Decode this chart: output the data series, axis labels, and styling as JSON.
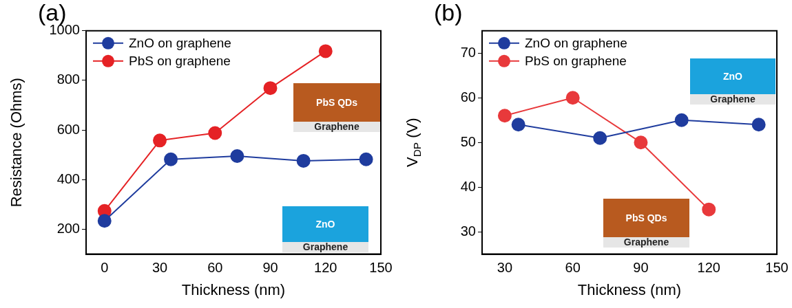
{
  "chart_data": [
    {
      "type": "line",
      "title": "(a)",
      "xlabel": "Thickness (nm)",
      "ylabel": "Resistance (Ohms)",
      "xlim": [
        -10,
        150
      ],
      "xticks": [
        0,
        30,
        60,
        90,
        120,
        150
      ],
      "ylim": [
        100,
        1000
      ],
      "yticks": [
        200,
        400,
        600,
        800,
        1000
      ],
      "grid": false,
      "legend": "top left",
      "marker": "circle",
      "series": [
        {
          "name": "ZnO on graphene",
          "color": "#1f3c9e",
          "x": [
            0,
            36,
            72,
            108,
            142
          ],
          "values": [
            234,
            482,
            495,
            476,
            482
          ]
        },
        {
          "name": "PbS on graphene",
          "color": "#e52225",
          "x": [
            0,
            30,
            60,
            90,
            120
          ],
          "values": [
            274,
            558,
            588,
            769,
            918
          ]
        }
      ],
      "annotations": [
        "PbS QDs",
        "Graphene",
        "ZnO",
        "Graphene"
      ]
    },
    {
      "type": "line",
      "title": "(b)",
      "xlabel": "Thickness (nm)",
      "ylabel": "V$_{DP}$ (V)",
      "xlim": [
        20,
        150
      ],
      "xticks": [
        30,
        60,
        90,
        120,
        150
      ],
      "ylim": [
        25,
        75
      ],
      "yticks": [
        30,
        40,
        50,
        60,
        70
      ],
      "grid": false,
      "legend": "top left",
      "marker": "circle",
      "series": [
        {
          "name": "ZnO on graphene",
          "color": "#1f3c9e",
          "x": [
            36,
            72,
            108,
            142
          ],
          "values": [
            54,
            51,
            55,
            54
          ]
        },
        {
          "name": "PbS on graphene",
          "color": "#e8393b",
          "x": [
            30,
            60,
            90,
            120
          ],
          "values": [
            56,
            60,
            50,
            35
          ]
        }
      ],
      "annotations": [
        "ZnO",
        "Graphene",
        "PbS QDs",
        "Graphene"
      ]
    }
  ]
}
